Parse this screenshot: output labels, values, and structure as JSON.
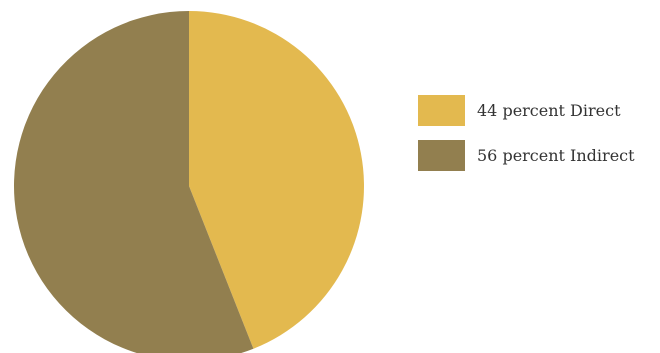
{
  "chart_data": {
    "type": "pie",
    "categories": [
      "Direct",
      "Indirect"
    ],
    "values": [
      44,
      56
    ],
    "legend": [
      "44 percent Direct",
      "56 percent Indirect"
    ],
    "colors": [
      "#E3B94F",
      "#927F4F"
    ],
    "legend_position": "right",
    "start_angle": "top",
    "direction": "clockwise"
  }
}
